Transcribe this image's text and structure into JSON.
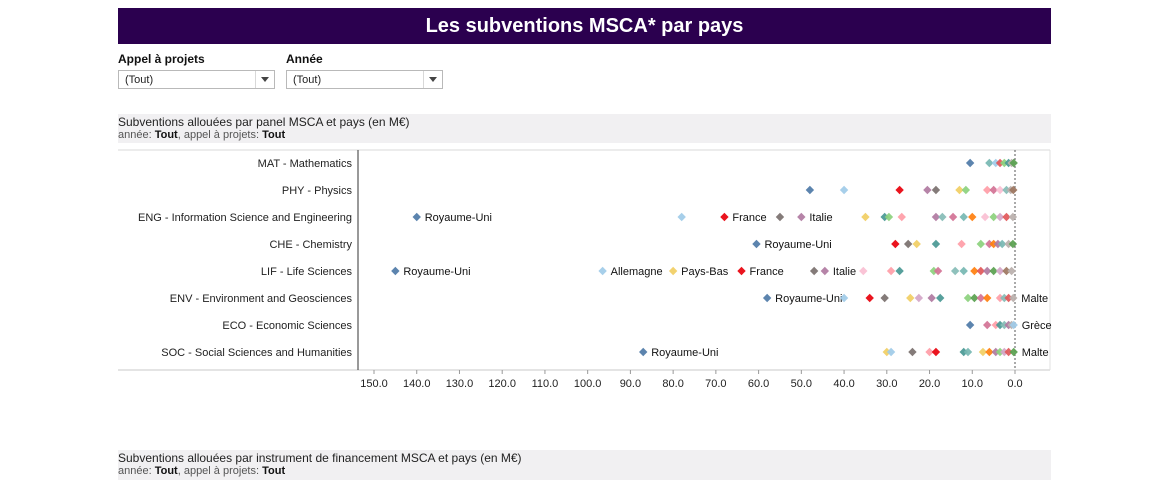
{
  "header": {
    "title": "Les subventions MSCA* par pays",
    "bg_color": "#2b004f"
  },
  "filters": [
    {
      "label": "Appel à projets",
      "value": "(Tout)"
    },
    {
      "label": "Année",
      "value": "(Tout)"
    }
  ],
  "section1": {
    "title": "Subventions allouées par panel MSCA et pays (en M€)",
    "sub_prefix1": "année: ",
    "sub_value1": "Tout",
    "sub_prefix2": ", appel à projets: ",
    "sub_value2": "Tout"
  },
  "section2": {
    "title": "Subventions allouées par instrument de financement MSCA et pays (en M€)",
    "sub_prefix1": "année: ",
    "sub_value1": "Tout",
    "sub_prefix2": ", appel à projets: ",
    "sub_value2": "Tout"
  },
  "chart_data": {
    "type": "scatter",
    "x_reversed": true,
    "xlim": [
      0,
      150
    ],
    "xticks": [
      "150.0",
      "140.0",
      "130.0",
      "120.0",
      "110.0",
      "100.0",
      "90.0",
      "80.0",
      "70.0",
      "60.0",
      "50.0",
      "40.0",
      "30.0",
      "20.0",
      "10.0",
      "0.0"
    ],
    "rows": [
      {
        "label": "MAT - Mathematics",
        "points": [
          {
            "x": 10.5,
            "color": "#4e79a7"
          },
          {
            "x": 6,
            "color": "#76b7b2"
          },
          {
            "x": 4.5,
            "color": "#a0cbe8"
          },
          {
            "x": 3.5,
            "color": "#e15759"
          },
          {
            "x": 2.5,
            "color": "#8cd17d"
          },
          {
            "x": 1.5,
            "color": "#499894"
          },
          {
            "x": 0.8,
            "color": "#bab0ac"
          },
          {
            "x": 0.3,
            "color": "#59a14f"
          }
        ]
      },
      {
        "label": "PHY - Physics",
        "points": [
          {
            "x": 48,
            "color": "#4e79a7"
          },
          {
            "x": 40,
            "color": "#a0cbe8"
          },
          {
            "x": 27,
            "color": "#e8000b"
          },
          {
            "x": 20.5,
            "color": "#b07aa1"
          },
          {
            "x": 18.5,
            "color": "#79706e"
          },
          {
            "x": 13,
            "color": "#f1ce63"
          },
          {
            "x": 11.5,
            "color": "#8cd17d"
          },
          {
            "x": 6.5,
            "color": "#ff9da7"
          },
          {
            "x": 5,
            "color": "#d37295"
          },
          {
            "x": 3.5,
            "color": "#fabfd2"
          },
          {
            "x": 2,
            "color": "#86bcb6"
          },
          {
            "x": 1,
            "color": "#bab0ac"
          },
          {
            "x": 0.4,
            "color": "#9d7660"
          }
        ]
      },
      {
        "label": "ENG - Information Science and Engineering",
        "points": [
          {
            "x": 140,
            "color": "#4e79a7",
            "label": "Royaume-Uni"
          },
          {
            "x": 78,
            "color": "#a0cbe8"
          },
          {
            "x": 68,
            "color": "#e8000b",
            "label": "France"
          },
          {
            "x": 55,
            "color": "#79706e"
          },
          {
            "x": 50,
            "color": "#b07aa1",
            "label": "Italie"
          },
          {
            "x": 35,
            "color": "#f1ce63"
          },
          {
            "x": 30.5,
            "color": "#499894"
          },
          {
            "x": 29.5,
            "color": "#8cd17d"
          },
          {
            "x": 26.5,
            "color": "#ff9da7"
          },
          {
            "x": 18.5,
            "color": "#b07aa1"
          },
          {
            "x": 17,
            "color": "#86bcb6"
          },
          {
            "x": 14.5,
            "color": "#d37295"
          },
          {
            "x": 12,
            "color": "#76b7b2"
          },
          {
            "x": 10,
            "color": "#ff7f0e"
          },
          {
            "x": 7,
            "color": "#fabfd2"
          },
          {
            "x": 5,
            "color": "#8cd17d"
          },
          {
            "x": 3.5,
            "color": "#d4a6c8"
          },
          {
            "x": 2,
            "color": "#e15759"
          },
          {
            "x": 0.5,
            "color": "#bab0ac"
          }
        ]
      },
      {
        "label": "CHE - Chemistry",
        "points": [
          {
            "x": 60.5,
            "color": "#4e79a7",
            "label": "Royaume-Uni"
          },
          {
            "x": 28,
            "color": "#e8000b"
          },
          {
            "x": 25,
            "color": "#79706e"
          },
          {
            "x": 23,
            "color": "#f1ce63"
          },
          {
            "x": 18.5,
            "color": "#499894"
          },
          {
            "x": 12.5,
            "color": "#ff9da7"
          },
          {
            "x": 8,
            "color": "#8cd17d"
          },
          {
            "x": 6,
            "color": "#d37295"
          },
          {
            "x": 5,
            "color": "#ff7f0e"
          },
          {
            "x": 4,
            "color": "#b07aa1"
          },
          {
            "x": 3,
            "color": "#76b7b2"
          },
          {
            "x": 1.5,
            "color": "#bab0ac"
          },
          {
            "x": 0.5,
            "color": "#59a14f"
          }
        ]
      },
      {
        "label": "LIF - Life Sciences",
        "points": [
          {
            "x": 145,
            "color": "#4e79a7",
            "label": "Royaume-Uni"
          },
          {
            "x": 96.5,
            "color": "#a0cbe8",
            "label": "Allemagne"
          },
          {
            "x": 80,
            "color": "#f1ce63",
            "label": "Pays-Bas"
          },
          {
            "x": 64,
            "color": "#e8000b",
            "label": "France"
          },
          {
            "x": 47,
            "color": "#79706e"
          },
          {
            "x": 44.5,
            "color": "#b07aa1",
            "label": "Italie"
          },
          {
            "x": 35.5,
            "color": "#fabfd2"
          },
          {
            "x": 29,
            "color": "#ff9da7"
          },
          {
            "x": 27,
            "color": "#499894"
          },
          {
            "x": 19,
            "color": "#8cd17d"
          },
          {
            "x": 18,
            "color": "#d37295"
          },
          {
            "x": 14,
            "color": "#86bcb6"
          },
          {
            "x": 12,
            "color": "#76b7b2"
          },
          {
            "x": 9.5,
            "color": "#ff7f0e"
          },
          {
            "x": 8,
            "color": "#e15759"
          },
          {
            "x": 6.5,
            "color": "#b07aa1"
          },
          {
            "x": 5,
            "color": "#59a14f"
          },
          {
            "x": 3.5,
            "color": "#d4a6c8"
          },
          {
            "x": 2,
            "color": "#9d7660"
          },
          {
            "x": 0.8,
            "color": "#bab0ac"
          }
        ]
      },
      {
        "label": "ENV - Environment and Geosciences",
        "points": [
          {
            "x": 58,
            "color": "#4e79a7",
            "label": "Royaume-Uni"
          },
          {
            "x": 40,
            "color": "#a0cbe8"
          },
          {
            "x": 34,
            "color": "#e8000b"
          },
          {
            "x": 30.5,
            "color": "#79706e"
          },
          {
            "x": 24.5,
            "color": "#f1ce63"
          },
          {
            "x": 22.5,
            "color": "#d4a6c8"
          },
          {
            "x": 19.5,
            "color": "#b07aa1"
          },
          {
            "x": 17.5,
            "color": "#499894"
          },
          {
            "x": 11,
            "color": "#8cd17d"
          },
          {
            "x": 9.5,
            "color": "#59a14f"
          },
          {
            "x": 8,
            "color": "#d37295"
          },
          {
            "x": 6.5,
            "color": "#ff7f0e"
          },
          {
            "x": 3.5,
            "color": "#ff9da7"
          },
          {
            "x": 2.5,
            "color": "#86bcb6"
          },
          {
            "x": 1.5,
            "color": "#e15759"
          },
          {
            "x": 0.4,
            "color": "#bab0ac",
            "label": "Malte"
          }
        ]
      },
      {
        "label": "ECO - Economic Sciences",
        "points": [
          {
            "x": 10.5,
            "color": "#4e79a7"
          },
          {
            "x": 6.5,
            "color": "#d37295"
          },
          {
            "x": 4.5,
            "color": "#ff9da7"
          },
          {
            "x": 3.5,
            "color": "#499894"
          },
          {
            "x": 2.5,
            "color": "#86bcb6"
          },
          {
            "x": 1.5,
            "color": "#b07aa1"
          },
          {
            "x": 0.8,
            "color": "#bab0ac"
          },
          {
            "x": 0.3,
            "color": "#a0cbe8",
            "label": "Grèce"
          }
        ]
      },
      {
        "label": "SOC - Social Sciences and Humanities",
        "points": [
          {
            "x": 87,
            "color": "#4e79a7",
            "label": "Royaume-Uni"
          },
          {
            "x": 30,
            "color": "#f1ce63"
          },
          {
            "x": 29,
            "color": "#a0cbe8"
          },
          {
            "x": 24,
            "color": "#79706e"
          },
          {
            "x": 20,
            "color": "#ff9da7"
          },
          {
            "x": 18.5,
            "color": "#e8000b"
          },
          {
            "x": 12,
            "color": "#499894"
          },
          {
            "x": 11,
            "color": "#76b7b2"
          },
          {
            "x": 7.5,
            "color": "#f1ce63"
          },
          {
            "x": 6,
            "color": "#ff7f0e"
          },
          {
            "x": 4.5,
            "color": "#b07aa1"
          },
          {
            "x": 3.5,
            "color": "#8cd17d"
          },
          {
            "x": 2.5,
            "color": "#d4a6c8"
          },
          {
            "x": 1.5,
            "color": "#e15759"
          },
          {
            "x": 0.3,
            "color": "#59a14f",
            "label": "Malte"
          }
        ]
      }
    ]
  }
}
